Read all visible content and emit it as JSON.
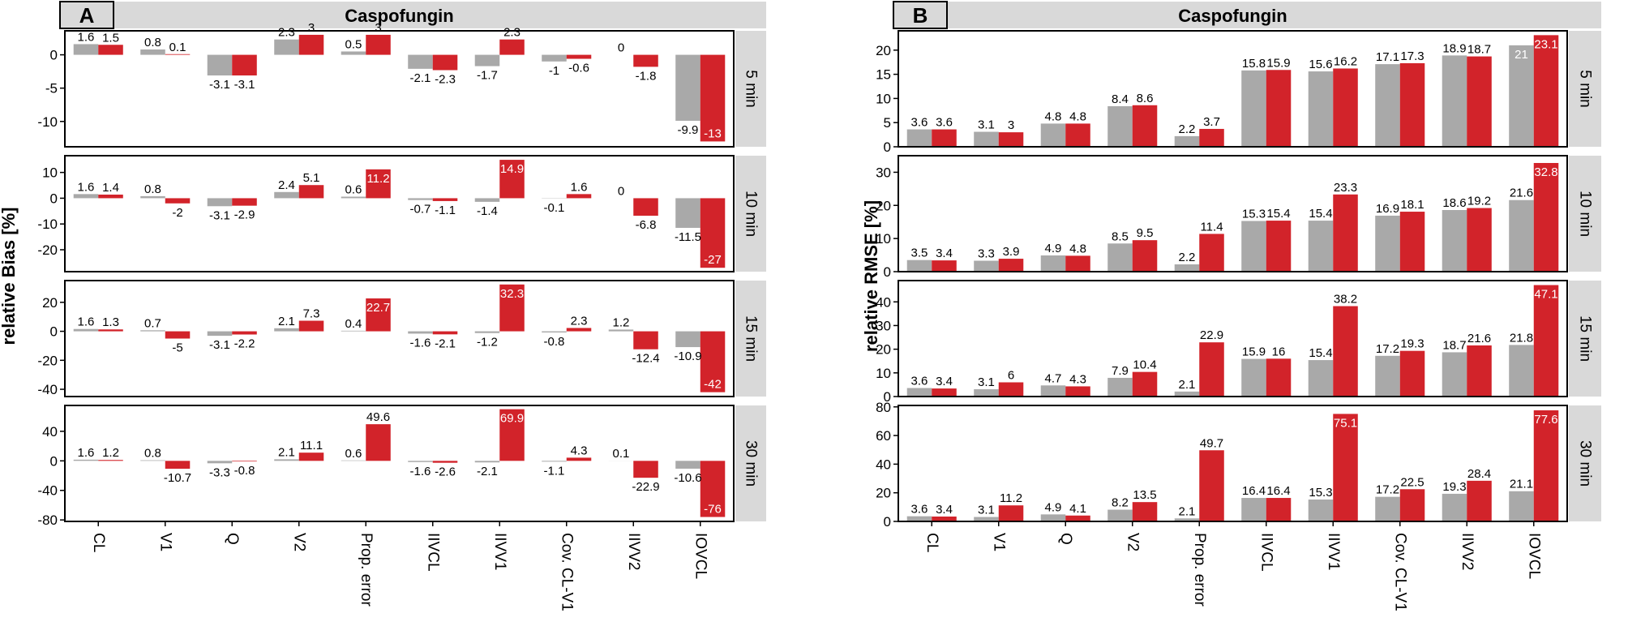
{
  "colors": {
    "gray": "#a9a9a9",
    "red": "#d2232a",
    "strip": "#d9d9d9",
    "frame": "#000000"
  },
  "chart_data": [
    {
      "type": "bar",
      "panel_label": "A",
      "title": "Caspofungin",
      "ylabel": "relative Bias [%]",
      "xlabel": "",
      "categories": [
        "CL",
        "V1",
        "Q",
        "V2",
        "Prop. error",
        "IIVCL",
        "IIVV1",
        "Cov. CL-V1",
        "IIVV2",
        "IOVCL"
      ],
      "facets": [
        {
          "label": "5 min",
          "ylim": [
            -13.8,
            3.6
          ],
          "yticks": [
            -10,
            -5,
            0
          ],
          "series": [
            {
              "name": "gray",
              "values": [
                1.6,
                0.8,
                -3.1,
                2.3,
                0.5,
                -2.1,
                -1.7,
                -1,
                0,
                -9.9
              ]
            },
            {
              "name": "red",
              "values": [
                1.5,
                0.1,
                -3.1,
                3,
                3,
                -2.3,
                2.3,
                -0.6,
                -1.8,
                -13
              ]
            }
          ]
        },
        {
          "label": "10 min",
          "ylim": [
            -28.5,
            16.5
          ],
          "yticks": [
            -20,
            -10,
            0,
            10
          ],
          "series": [
            {
              "name": "gray",
              "values": [
                1.6,
                0.8,
                -3.1,
                2.4,
                0.6,
                -0.7,
                -1.4,
                -0.1,
                0,
                -11.5
              ]
            },
            {
              "name": "red",
              "values": [
                1.4,
                -2,
                -2.9,
                5.1,
                11.2,
                -1.1,
                14.9,
                1.6,
                -6.8,
                -27
              ]
            }
          ]
        },
        {
          "label": "15 min",
          "ylim": [
            -45,
            35
          ],
          "yticks": [
            -40,
            -20,
            0,
            20
          ],
          "series": [
            {
              "name": "gray",
              "values": [
                1.6,
                0.7,
                -3.1,
                2.1,
                0.4,
                -1.6,
                -1.2,
                -0.8,
                1.2,
                -10.9
              ]
            },
            {
              "name": "red",
              "values": [
                1.3,
                -5,
                -2.2,
                7.3,
                22.7,
                -2.1,
                32.3,
                2.3,
                -12.4,
                -42
              ]
            }
          ]
        },
        {
          "label": "30 min",
          "ylim": [
            -82,
            75
          ],
          "yticks": [
            -80,
            -40,
            0,
            40
          ],
          "series": [
            {
              "name": "gray",
              "values": [
                1.6,
                0.8,
                -3.3,
                2.1,
                0.6,
                -1.6,
                -2.1,
                -1.1,
                0.1,
                -10.6
              ]
            },
            {
              "name": "red",
              "values": [
                1.2,
                -10.7,
                -0.8,
                11.1,
                49.6,
                -2.6,
                69.9,
                4.3,
                -22.9,
                -76
              ]
            }
          ]
        }
      ]
    },
    {
      "type": "bar",
      "panel_label": "B",
      "title": "Caspofungin",
      "ylabel": "relative RMSE [%]",
      "xlabel": "",
      "categories": [
        "CL",
        "V1",
        "Q",
        "V2",
        "Prop. error",
        "IIVCL",
        "IIVV1",
        "Cov. CL-V1",
        "IIVV2",
        "IOVCL"
      ],
      "facets": [
        {
          "label": "5 min",
          "ylim": [
            0,
            24
          ],
          "yticks": [
            0,
            5,
            10,
            15,
            20
          ],
          "series": [
            {
              "name": "gray",
              "values": [
                3.6,
                3.1,
                4.8,
                8.4,
                2.2,
                15.8,
                15.6,
                17.1,
                18.9,
                21
              ]
            },
            {
              "name": "red",
              "values": [
                3.6,
                3,
                4.8,
                8.6,
                3.7,
                15.9,
                16.2,
                17.3,
                18.7,
                23.1
              ]
            }
          ]
        },
        {
          "label": "10 min",
          "ylim": [
            0,
            35
          ],
          "yticks": [
            0,
            10,
            20,
            30
          ],
          "series": [
            {
              "name": "gray",
              "values": [
                3.5,
                3.3,
                4.9,
                8.5,
                2.2,
                15.3,
                15.4,
                16.9,
                18.6,
                21.6
              ]
            },
            {
              "name": "red",
              "values": [
                3.4,
                3.9,
                4.8,
                9.5,
                11.4,
                15.4,
                23.3,
                18.1,
                19.2,
                32.8
              ]
            }
          ]
        },
        {
          "label": "15 min",
          "ylim": [
            0,
            49
          ],
          "yticks": [
            0,
            10,
            20,
            30,
            40
          ],
          "series": [
            {
              "name": "gray",
              "values": [
                3.6,
                3.1,
                4.7,
                7.9,
                2.1,
                15.9,
                15.4,
                17.2,
                18.7,
                21.8
              ]
            },
            {
              "name": "red",
              "values": [
                3.4,
                6,
                4.3,
                10.4,
                22.9,
                16,
                38.2,
                19.3,
                21.6,
                47.1
              ]
            }
          ]
        },
        {
          "label": "30 min",
          "ylim": [
            0,
            81
          ],
          "yticks": [
            0,
            20,
            40,
            60,
            80
          ],
          "series": [
            {
              "name": "gray",
              "values": [
                3.6,
                3.1,
                4.9,
                8.2,
                2.1,
                16.4,
                15.3,
                17.2,
                19.3,
                21.1
              ]
            },
            {
              "name": "red",
              "values": [
                3.4,
                11.2,
                4.1,
                13.5,
                49.7,
                16.4,
                75.1,
                22.5,
                28.4,
                77.6
              ]
            }
          ]
        }
      ]
    }
  ]
}
